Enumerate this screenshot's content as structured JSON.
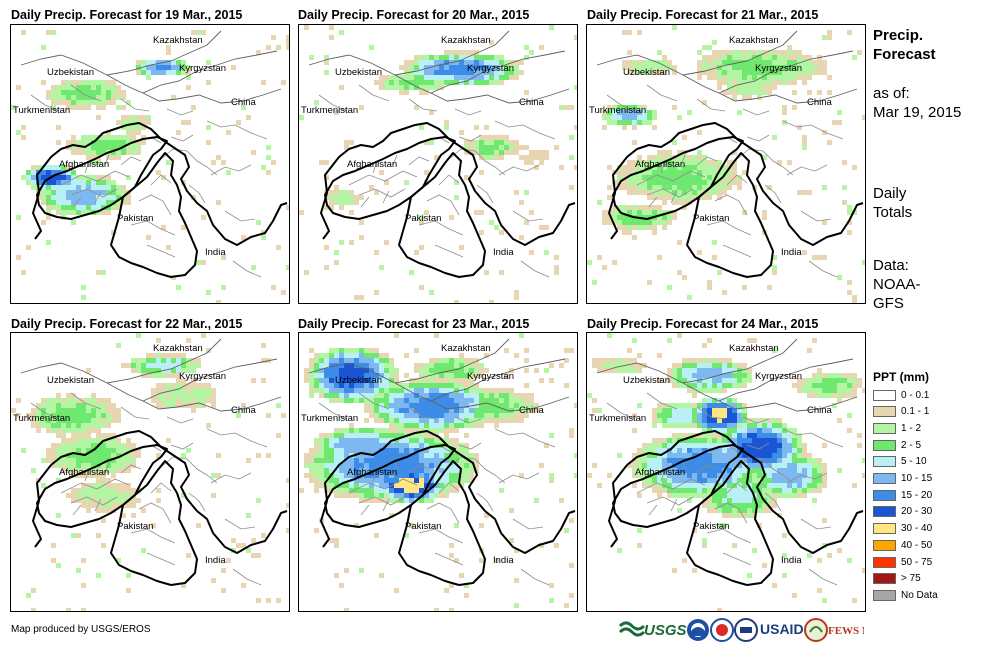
{
  "panels": [
    {
      "title": "Daily Precip. Forecast for 19 Mar., 2015",
      "day": 0
    },
    {
      "title": "Daily Precip. Forecast for 20 Mar., 2015",
      "day": 1
    },
    {
      "title": "Daily Precip. Forecast for 21 Mar., 2015",
      "day": 2
    },
    {
      "title": "Daily Precip. Forecast for 22 Mar., 2015",
      "day": 3
    },
    {
      "title": "Daily Precip. Forecast for 23 Mar., 2015",
      "day": 4
    },
    {
      "title": "Daily Precip. Forecast for 24 Mar., 2015",
      "day": 5
    }
  ],
  "country_labels": {
    "kazakhstan": "Kazakhstan",
    "uzbekistan": "Uzbekistan",
    "kyrgyzstan": "Kyrgyzstan",
    "turkmenistan": "Turkmenistan",
    "china": "China",
    "afghanistan": "Afghanistan",
    "pakistan": "Pakistan",
    "india": "India"
  },
  "sidebar": {
    "title": "Precip. Forecast",
    "as_of_label": "as of:",
    "as_of_date": "Mar 19, 2015",
    "totals_line1": "Daily",
    "totals_line2": "Totals",
    "data_label": "Data:",
    "data_line2": "NOAA-",
    "data_line3": "GFS"
  },
  "legend": {
    "title": "PPT (mm)",
    "items": [
      {
        "label": "0 - 0.1",
        "color": "#ffffff"
      },
      {
        "label": "0.1 - 1",
        "color": "#e8d6b3"
      },
      {
        "label": "1 - 2",
        "color": "#b3f5a3"
      },
      {
        "label": "2 - 5",
        "color": "#6ee86e"
      },
      {
        "label": "5 - 10",
        "color": "#b8f0f5"
      },
      {
        "label": "10 - 15",
        "color": "#7eb8f0"
      },
      {
        "label": "15 - 20",
        "color": "#3d8ce8"
      },
      {
        "label": "20 - 30",
        "color": "#1a55d6"
      },
      {
        "label": "30 - 40",
        "color": "#ffe680"
      },
      {
        "label": "40 - 50",
        "color": "#ffa500"
      },
      {
        "label": "50 - 75",
        "color": "#ff3300"
      },
      {
        "label": "> 75",
        "color": "#a01818"
      },
      {
        "label": "No Data",
        "color": "#a6a6a6"
      }
    ]
  },
  "credit": "Map produced by USGS/EROS",
  "logos": {
    "usgs": "USGS",
    "usaid": "USAID",
    "fews": "FEWS NET"
  }
}
